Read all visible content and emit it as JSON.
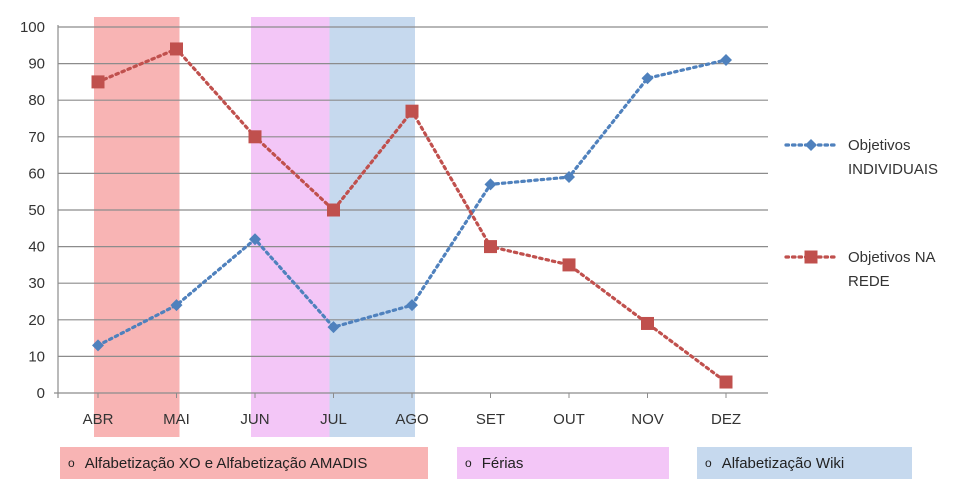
{
  "chart_data": {
    "type": "line",
    "categories": [
      "ABR",
      "MAI",
      "JUN",
      "JUL",
      "AGO",
      "SET",
      "OUT",
      "NOV",
      "DEZ"
    ],
    "ylim": [
      0,
      100
    ],
    "yticks": [
      0,
      10,
      20,
      30,
      40,
      50,
      60,
      70,
      80,
      90,
      100
    ],
    "grid": true,
    "legend_position": "right",
    "series": [
      {
        "name": "Objetivos INDIVIDUAIS",
        "name_lines": [
          "Objetivos",
          "INDIVIDUAIS"
        ],
        "values": [
          13,
          24,
          42,
          18,
          24,
          57,
          59,
          86,
          91
        ],
        "color": "#4F81BD",
        "marker": "diamond",
        "line_style": "dotted"
      },
      {
        "name": "Objetivos NA REDE",
        "name_lines": [
          "Objetivos NA",
          "REDE"
        ],
        "values": [
          85,
          94,
          70,
          50,
          77,
          40,
          35,
          19,
          3
        ],
        "color": "#C0504D",
        "marker": "square",
        "line_style": "dotted"
      }
    ],
    "bands": [
      {
        "label": "Alfabetização XO e  Alfabetização AMADIS",
        "from": "ABR",
        "to": "MAI",
        "color": "#F8B4B4"
      },
      {
        "label": "Férias",
        "from": "JUN",
        "to": "JUL",
        "color": "#F3C6F7"
      },
      {
        "label": "Alfabetização Wiki",
        "from": "JUL",
        "to": "AGO",
        "color": "#C6D9EE"
      }
    ]
  },
  "band_legend_bullet": "o"
}
